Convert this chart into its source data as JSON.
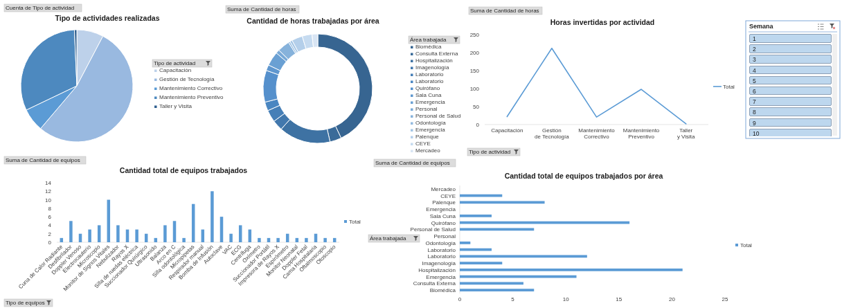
{
  "chart_data": [
    {
      "type": "pie",
      "title": "Tipo de actividades realizadas",
      "legend_title": "Tipo de actividad",
      "legend": "right",
      "annotations": [
        "Cuenta de Tipo de actividad"
      ],
      "categories": [
        "Capacitación",
        "Gestión de Tecnología",
        "Mantenimiento Correctivo",
        "Mantenimiento Preventivo",
        "Taller y Visita"
      ],
      "values": [
        7.7,
        53.5,
        6.7,
        31.4,
        0.7
      ],
      "colors": [
        "#bdd1ea",
        "#99b9e0",
        "#5b9bd5",
        "#4d89bf",
        "#2f5f8f"
      ]
    },
    {
      "type": "donut",
      "title": "Cantidad de horas trabajadas por área",
      "legend_title": "Área trabajada",
      "legend": "right",
      "annotations": [
        "Suma de Cantidad de horas"
      ],
      "categories": [
        "Biomédica",
        "Consulta Externa",
        "Hospitalización",
        "Imagenología",
        "Laboratorio",
        "Laboratorio",
        "Quirófano",
        "Sala Cuna",
        "Emergencia",
        "Personal",
        "Personal de Salud",
        "Odontología",
        "Emergencia",
        "Palenque",
        "CEYE",
        "Mercadeo"
      ],
      "values": [
        43,
        3.4,
        15.3,
        3.1,
        3.6,
        2.6,
        9.4,
        1.7,
        4.2,
        1.1,
        3.6,
        0.5,
        0.7,
        3.2,
        2.9,
        1.7
      ],
      "colors": [
        "#376591",
        "#3a6b99",
        "#3e72a3",
        "#4278ad",
        "#467fb7",
        "#4a86c1",
        "#5590cc",
        "#5f97cf",
        "#6aa0d3",
        "#78a9d7",
        "#86b2db",
        "#94bbe0",
        "#a3c5e5",
        "#b4cfea",
        "#c6dbf0",
        "#d8e5f4"
      ]
    },
    {
      "type": "line",
      "title": "Horas invertidas por actividad",
      "legend": "right",
      "annotations": [
        "Suma de Cantidad de horas",
        "Tipo de actividad",
        "Semana",
        "1",
        "2",
        "3",
        "4",
        "5",
        "6",
        "7",
        "8",
        "9",
        "10"
      ],
      "categories": [
        "Capacitación",
        "Gestión de Tecnología",
        "Mantenimiento Correctivo",
        "Mantenimiento Preventivo",
        "Taller y Visita"
      ],
      "series": [
        {
          "name": "Total",
          "color": "#5b9bd5",
          "values": [
            22,
            212,
            21,
            98,
            2
          ]
        }
      ],
      "ylim": [
        0,
        250
      ],
      "yticks": [
        0,
        50,
        100,
        150,
        200,
        250
      ],
      "grid": false,
      "marker": "none",
      "line_style": "solid"
    },
    {
      "type": "bar",
      "title": "Cantidad total de equipos trabajados",
      "legend": "right",
      "annotations": [
        "Suma de Cantidad de equipos",
        "Tipo de equipos"
      ],
      "categories": [
        "Cuna de Calor Radiante",
        "Desfibrilador",
        "Doppler Venoso",
        "Electrocauterio",
        "Microscopio",
        "Monitor de Signos Vitales",
        "Nebulizador",
        "Rayos X",
        "Silla de ruedas eléctrica",
        "Succionador Quirúrgico",
        "Ultrasonido",
        "Balanza",
        "Arco en C",
        "Silla odontológica",
        "Micropipetas",
        "Respirador manual",
        "Bomba de Infusión",
        "Autoclave",
        "VAC",
        "ECG",
        "Centrífuga",
        "Oxímetro",
        "Succionador Portátil",
        "Impresora de Rayos X",
        "Espirómetro",
        "Monitor Neonatal",
        "Doppler Fetal",
        "Cama Hospitalaria",
        "Oftalmoscopio",
        "Otoscopio"
      ],
      "series": [
        {
          "name": "Total",
          "color": "#5b9bd5",
          "values": [
            1,
            5,
            2,
            3,
            4,
            10,
            4,
            3,
            3,
            2,
            1,
            4,
            5,
            1,
            9,
            3,
            12,
            6,
            2,
            4,
            3,
            1,
            1,
            1,
            2,
            1,
            1,
            2,
            1,
            1
          ]
        }
      ],
      "ylim": [
        0,
        14
      ],
      "yticks": [
        0,
        2,
        4,
        6,
        8,
        10,
        12,
        14
      ],
      "grid": false
    },
    {
      "type": "bar",
      "orientation": "horizontal",
      "title": "Cantidad total de equipos trabajados por área",
      "legend": "right",
      "annotations": [
        "Suma de Cantidad de equipos",
        "Área trabajada"
      ],
      "categories": [
        "Mercadeo",
        "CEYE",
        "Palenque",
        "Emergencia",
        "Sala Cuna",
        "Quirófano",
        "Personal de Salud",
        "Personal",
        "Odontología",
        "Laboratorio",
        "Laboratorio",
        "Imagenología",
        "Hospitalización",
        "Emergencia",
        "Consulta Externa",
        "Biomédica"
      ],
      "series": [
        {
          "name": "Total",
          "color": "#5b9bd5",
          "values": [
            null,
            4,
            8,
            null,
            3,
            16,
            7,
            null,
            1,
            3,
            12,
            4,
            21,
            11,
            6,
            7
          ]
        }
      ],
      "xlim": [
        0,
        25
      ],
      "xticks": [
        0,
        5,
        10,
        15,
        20,
        25
      ],
      "grid": false
    }
  ]
}
